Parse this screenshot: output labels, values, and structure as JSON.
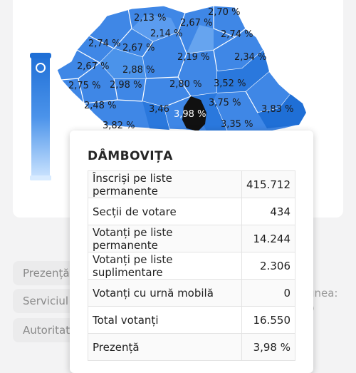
{
  "map": {
    "selected_county": "DÂMBOVIȚA",
    "selected_value": "3,98 %",
    "labels": [
      "2,13 %",
      "2,70 %",
      "2,67 %",
      "2,74 %",
      "2,14 %",
      "2,74 %",
      "2,67 %",
      "2,19 %",
      "2,34 %",
      "2,67 %",
      "2,88 %",
      "2,75 %",
      "2,98 %",
      "2,80 %",
      "3,52 %",
      "2,48 %",
      "3,46",
      "3,75 %",
      "3,83 %",
      "3,82 %",
      "3,35 %"
    ],
    "colors": {
      "dark": "#1f6fd6",
      "mid": "#3f87e6",
      "light": "#6aa7f0",
      "pale": "#8fbdf5",
      "selected": "#111111"
    }
  },
  "legend": {
    "top_color": "#1f6fd6",
    "bottom_color": "#d8ebff"
  },
  "buttons": [
    "Prezență",
    "Serviciul",
    "Autoritat"
  ],
  "side_text": {
    "line1": "unea:",
    "line2": "9"
  },
  "tooltip": {
    "title": "DÂMBOVIȚA",
    "rows": [
      {
        "label": "Înscriși pe liste permanente",
        "value": "415.712"
      },
      {
        "label": "Secții de votare",
        "value": "434"
      },
      {
        "label": "Votanți pe liste permanente",
        "value": "14.244"
      },
      {
        "label": "Votanți pe liste suplimentare",
        "value": "2.306"
      },
      {
        "label": "Votanți cu urnă mobilă",
        "value": "0"
      },
      {
        "label": "Total votanți",
        "value": "16.550"
      },
      {
        "label": "Prezență",
        "value": "3,98 %"
      }
    ]
  }
}
